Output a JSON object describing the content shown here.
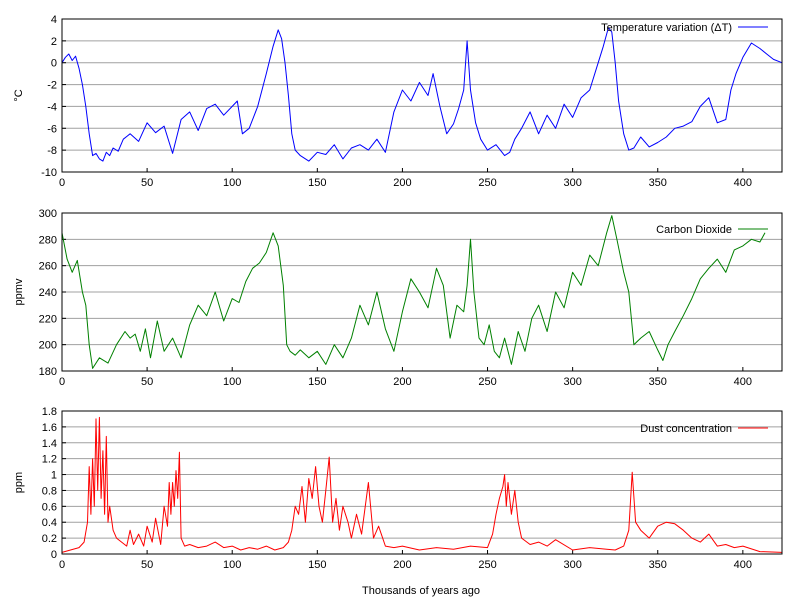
{
  "chart_data": [
    {
      "type": "line",
      "xlabel": "",
      "ylabel": "°C",
      "xlim": [
        0,
        423
      ],
      "ylim": [
        -10,
        4
      ],
      "x_ticks": [
        0,
        50,
        100,
        150,
        200,
        250,
        300,
        350,
        400
      ],
      "y_ticks": [
        -10,
        -8,
        -6,
        -4,
        -2,
        0,
        2,
        4
      ],
      "grid": "horizontal",
      "legend_position": "top-right",
      "color": "#0000ff",
      "series": [
        {
          "name": "Temperature variation (ΔT)",
          "x": [
            0,
            2,
            4,
            6,
            8,
            10,
            12,
            14,
            16,
            18,
            20,
            22,
            24,
            26,
            28,
            30,
            33,
            36,
            40,
            45,
            50,
            55,
            60,
            65,
            70,
            75,
            80,
            85,
            90,
            95,
            100,
            103,
            106,
            110,
            115,
            120,
            124,
            127,
            129,
            131,
            133,
            135,
            137,
            140,
            145,
            150,
            155,
            160,
            165,
            170,
            175,
            180,
            185,
            190,
            195,
            200,
            205,
            210,
            215,
            218,
            222,
            226,
            230,
            233,
            236,
            238,
            240,
            243,
            246,
            250,
            255,
            260,
            263,
            266,
            270,
            275,
            280,
            285,
            290,
            295,
            300,
            305,
            310,
            315,
            318,
            321,
            323,
            325,
            327,
            330,
            333,
            336,
            340,
            345,
            350,
            355,
            360,
            365,
            370,
            375,
            380,
            385,
            390,
            393,
            396,
            400,
            405,
            410,
            414,
            418,
            423
          ],
          "y": [
            0,
            0.5,
            0.8,
            0.2,
            0.6,
            -0.5,
            -2,
            -4,
            -6.5,
            -8.5,
            -8.3,
            -8.8,
            -9,
            -8.2,
            -8.5,
            -7.8,
            -8.1,
            -7,
            -6.5,
            -7.2,
            -5.5,
            -6.4,
            -5.8,
            -8.3,
            -5.2,
            -4.5,
            -6.2,
            -4.2,
            -3.8,
            -4.8,
            -4,
            -3.5,
            -6.5,
            -6,
            -4,
            -1,
            1.5,
            3,
            2.2,
            0,
            -3,
            -6.5,
            -8,
            -8.5,
            -9,
            -8.2,
            -8.4,
            -7.5,
            -8.8,
            -7.8,
            -7.5,
            -8,
            -7,
            -8.2,
            -4.5,
            -2.5,
            -3.5,
            -1.8,
            -3,
            -1,
            -4,
            -6.5,
            -5.6,
            -4.2,
            -2.5,
            2,
            -2.5,
            -5.5,
            -7,
            -8,
            -7.5,
            -8.5,
            -8.2,
            -7,
            -6,
            -4.5,
            -6.5,
            -4.8,
            -6,
            -3.8,
            -5,
            -3.2,
            -2.5,
            0,
            1.5,
            3.2,
            2.8,
            0,
            -3.5,
            -6.5,
            -8,
            -7.8,
            -6.8,
            -7.7,
            -7.3,
            -6.8,
            -6,
            -5.8,
            -5.4,
            -4,
            -3.2,
            -5.5,
            -5.2,
            -2.5,
            -1,
            0.5,
            1.8,
            1.3,
            0.8,
            0.3,
            0
          ]
        }
      ]
    },
    {
      "type": "line",
      "xlabel": "",
      "ylabel": "ppmv",
      "xlim": [
        0,
        423
      ],
      "ylim": [
        180,
        300
      ],
      "x_ticks": [
        0,
        50,
        100,
        150,
        200,
        250,
        300,
        350,
        400
      ],
      "y_ticks": [
        180,
        200,
        220,
        240,
        260,
        280,
        300
      ],
      "grid": "horizontal",
      "legend_position": "top-right",
      "color": "#008000",
      "series": [
        {
          "name": "Carbon Dioxide",
          "x": [
            0,
            3,
            6,
            9,
            12,
            14,
            16,
            18,
            22,
            27,
            32,
            37,
            40,
            43,
            46,
            49,
            52,
            56,
            60,
            65,
            70,
            75,
            80,
            85,
            90,
            95,
            100,
            104,
            108,
            112,
            116,
            120,
            124,
            127,
            130,
            132,
            134,
            137,
            140,
            145,
            150,
            155,
            160,
            165,
            170,
            175,
            180,
            185,
            190,
            195,
            200,
            205,
            210,
            215,
            220,
            224,
            228,
            232,
            236,
            238,
            240,
            242,
            245,
            248,
            251,
            254,
            257,
            260,
            264,
            268,
            272,
            276,
            280,
            285,
            290,
            295,
            300,
            305,
            310,
            315,
            320,
            323,
            326,
            330,
            333,
            336,
            340,
            345,
            350,
            353,
            356,
            360,
            365,
            370,
            375,
            380,
            385,
            390,
            395,
            400,
            405,
            410,
            413
          ],
          "y": [
            285,
            265,
            255,
            264,
            240,
            230,
            200,
            182,
            190,
            186,
            200,
            210,
            205,
            208,
            195,
            212,
            190,
            218,
            195,
            205,
            190,
            215,
            230,
            222,
            240,
            218,
            235,
            232,
            248,
            258,
            262,
            270,
            285,
            275,
            245,
            200,
            195,
            192,
            196,
            190,
            195,
            185,
            200,
            190,
            205,
            230,
            215,
            240,
            212,
            195,
            225,
            250,
            240,
            228,
            258,
            245,
            205,
            230,
            225,
            245,
            280,
            240,
            205,
            200,
            215,
            195,
            190,
            205,
            185,
            210,
            195,
            220,
            230,
            210,
            240,
            228,
            255,
            245,
            268,
            260,
            285,
            298,
            280,
            255,
            240,
            200,
            205,
            210,
            196,
            188,
            200,
            210,
            222,
            235,
            250,
            258,
            265,
            255,
            272,
            275,
            280,
            278,
            285
          ]
        }
      ]
    },
    {
      "type": "line",
      "xlabel": "Thousands of years ago",
      "ylabel": "ppm",
      "xlim": [
        0,
        423
      ],
      "ylim": [
        0,
        1.8
      ],
      "x_ticks": [
        0,
        50,
        100,
        150,
        200,
        250,
        300,
        350,
        400
      ],
      "y_ticks": [
        0,
        0.2,
        0.4,
        0.6,
        0.8,
        1,
        1.2,
        1.4,
        1.6,
        1.8
      ],
      "grid": "horizontal",
      "legend_position": "top-right",
      "color": "#ff0000",
      "series": [
        {
          "name": "Dust concentration",
          "x": [
            0,
            5,
            10,
            13,
            15,
            16,
            17,
            18,
            19,
            20,
            21,
            22,
            23,
            24,
            25,
            26,
            27,
            28,
            30,
            32,
            35,
            38,
            40,
            42,
            45,
            48,
            50,
            53,
            55,
            58,
            60,
            62,
            63,
            64,
            65,
            66,
            67,
            68,
            69,
            70,
            72,
            75,
            80,
            85,
            90,
            95,
            100,
            105,
            110,
            115,
            120,
            125,
            130,
            133,
            135,
            137,
            139,
            141,
            143,
            145,
            147,
            149,
            151,
            153,
            155,
            157,
            159,
            161,
            163,
            165,
            168,
            170,
            173,
            176,
            180,
            183,
            186,
            190,
            195,
            200,
            210,
            220,
            230,
            240,
            250,
            253,
            255,
            257,
            259,
            260,
            261,
            262,
            264,
            266,
            268,
            270,
            275,
            280,
            285,
            290,
            300,
            310,
            320,
            325,
            330,
            333,
            335,
            337,
            340,
            345,
            350,
            355,
            360,
            365,
            370,
            375,
            380,
            385,
            390,
            395,
            400,
            410,
            423
          ],
          "y": [
            0.02,
            0.05,
            0.08,
            0.15,
            0.4,
            1.1,
            0.5,
            1.2,
            0.6,
            1.7,
            0.8,
            1.72,
            0.7,
            1.3,
            0.5,
            1.48,
            0.4,
            0.6,
            0.3,
            0.2,
            0.15,
            0.1,
            0.3,
            0.12,
            0.25,
            0.1,
            0.35,
            0.15,
            0.45,
            0.12,
            0.6,
            0.35,
            0.9,
            0.5,
            0.9,
            0.6,
            1.05,
            0.7,
            1.28,
            0.2,
            0.1,
            0.12,
            0.08,
            0.1,
            0.15,
            0.08,
            0.1,
            0.05,
            0.08,
            0.06,
            0.1,
            0.05,
            0.08,
            0.15,
            0.3,
            0.6,
            0.5,
            0.85,
            0.4,
            0.95,
            0.7,
            1.1,
            0.6,
            0.4,
            0.8,
            1.22,
            0.4,
            0.7,
            0.3,
            0.6,
            0.4,
            0.2,
            0.5,
            0.25,
            0.9,
            0.2,
            0.35,
            0.1,
            0.08,
            0.1,
            0.05,
            0.08,
            0.06,
            0.1,
            0.08,
            0.25,
            0.5,
            0.7,
            0.85,
            1.0,
            0.6,
            0.9,
            0.5,
            0.8,
            0.4,
            0.2,
            0.12,
            0.15,
            0.1,
            0.18,
            0.05,
            0.08,
            0.06,
            0.05,
            0.1,
            0.3,
            1.03,
            0.4,
            0.3,
            0.2,
            0.35,
            0.4,
            0.38,
            0.3,
            0.2,
            0.15,
            0.25,
            0.1,
            0.12,
            0.08,
            0.1,
            0.03,
            0.02
          ]
        }
      ]
    }
  ]
}
